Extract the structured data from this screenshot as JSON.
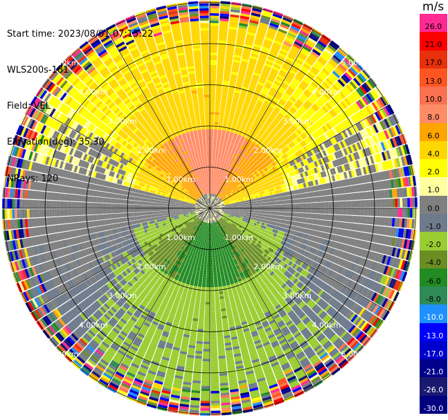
{
  "header": {
    "start_time": "Start time: 2023/08/01 07:15:22",
    "instrument": "WLS200s-181",
    "field": "Field: VEL",
    "elevation": "Elevation(deg): 35.30",
    "nrays": "NRays: 120"
  },
  "colorbar": {
    "unit": "m/s",
    "levels": [
      {
        "label": "26.0",
        "color": "#ff2a92"
      },
      {
        "label": "21.0",
        "color": "#ff0000"
      },
      {
        "label": "17.0",
        "color": "#e8300b"
      },
      {
        "label": "13.0",
        "color": "#ff5522"
      },
      {
        "label": "10.0",
        "color": "#fa7050"
      },
      {
        "label": "8.0",
        "color": "#ff8c66"
      },
      {
        "label": "6.0",
        "color": "#ffa500"
      },
      {
        "label": "4.0",
        "color": "#ffd700"
      },
      {
        "label": "2.0",
        "color": "#ffff00"
      },
      {
        "label": "1.0",
        "color": "#ffffa0"
      },
      {
        "label": "0.0",
        "color": "#808080"
      },
      {
        "label": "-1.0",
        "color": "#6e7b8b"
      },
      {
        "label": "-2.0",
        "color": "#9acd32"
      },
      {
        "label": "-4.0",
        "color": "#6b8e23"
      },
      {
        "label": "-6.0",
        "color": "#228b22"
      },
      {
        "label": "-8.0",
        "color": "#2e8b57"
      },
      {
        "label": "-10.0",
        "color": "#1e90ff"
      },
      {
        "label": "-13.0",
        "color": "#0000ff"
      },
      {
        "label": "-17.0",
        "color": "#0000cd"
      },
      {
        "label": "-21.0",
        "color": "#00008b"
      },
      {
        "label": "-26.0",
        "color": "#191970"
      },
      {
        "label": "-30.0",
        "color": "#000080"
      }
    ]
  },
  "chart_data": {
    "type": "heatmap",
    "projection": "polar-ppi",
    "field": "VEL",
    "range_rings_km": [
      1.0,
      2.0,
      3.0,
      4.0,
      5.0
    ],
    "ring_labels": [
      "1.00km",
      "2.00km",
      "3.00km",
      "4.00km",
      "5.00km"
    ],
    "n_rays": 120,
    "summary_pattern": [
      {
        "region": "north inner",
        "velocity_ms": [
          4.0,
          8.0
        ]
      },
      {
        "region": "north outer",
        "velocity_ms": [
          2.0,
          4.0
        ]
      },
      {
        "region": "south inner",
        "velocity_ms": [
          -8.0,
          -4.0
        ]
      },
      {
        "region": "south outer",
        "velocity_ms": [
          -4.0,
          -2.0
        ]
      },
      {
        "region": "east/west transition",
        "velocity_ms": [
          -1.0,
          0.0
        ]
      },
      {
        "region": "far range noise",
        "velocity_ms": [
          -30.0,
          26.0
        ]
      }
    ]
  }
}
